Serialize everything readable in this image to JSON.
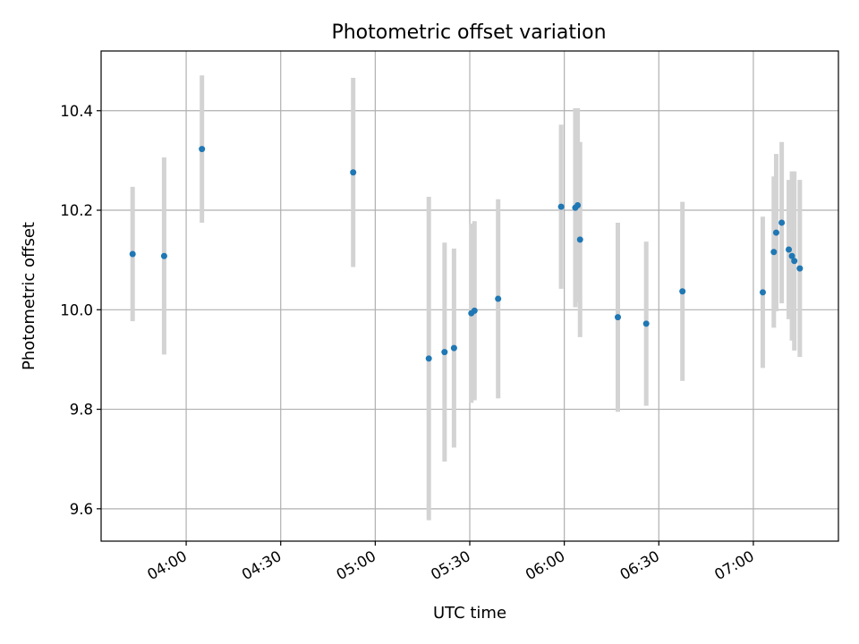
{
  "chart_data": {
    "type": "scatter",
    "title": "Photometric offset variation",
    "xlabel": "UTC time",
    "ylabel": "Photometric offset",
    "x_axis_type": "time",
    "xlim": [
      "03:33",
      "07:27"
    ],
    "ylim": [
      9.535,
      10.52
    ],
    "x_ticks": [
      "04:00",
      "04:30",
      "05:00",
      "05:30",
      "06:00",
      "06:30",
      "07:00"
    ],
    "y_ticks": [
      9.6,
      9.8,
      10.0,
      10.2,
      10.4
    ],
    "y_tick_labels": [
      "9.6",
      "9.8",
      "10.0",
      "10.2",
      "10.4"
    ],
    "x_tick_rotation_deg": 30,
    "grid": true,
    "marker_color": "#1f77b4",
    "errorbar_color": "#d3d3d3",
    "series": [
      {
        "points": [
          {
            "x": "03:43",
            "y": 10.112,
            "yerr": 0.135
          },
          {
            "x": "03:53",
            "y": 10.108,
            "yerr": 0.198
          },
          {
            "x": "04:05",
            "y": 10.323,
            "yerr": 0.148
          },
          {
            "x": "04:53",
            "y": 10.276,
            "yerr": 0.19
          },
          {
            "x": "05:17",
            "y": 9.902,
            "yerr": 0.325
          },
          {
            "x": "05:22",
            "y": 9.915,
            "yerr": 0.22
          },
          {
            "x": "05:25",
            "y": 9.923,
            "yerr": 0.2
          },
          {
            "x": "05:30:30",
            "y": 9.993,
            "yerr": 0.18
          },
          {
            "x": "05:31:30",
            "y": 9.998,
            "yerr": 0.18
          },
          {
            "x": "05:39",
            "y": 10.022,
            "yerr": 0.2
          },
          {
            "x": "05:59",
            "y": 10.207,
            "yerr": 0.165
          },
          {
            "x": "06:03:30",
            "y": 10.205,
            "yerr": 0.2
          },
          {
            "x": "06:04:15",
            "y": 10.21,
            "yerr": 0.195
          },
          {
            "x": "06:05",
            "y": 10.141,
            "yerr": 0.196
          },
          {
            "x": "06:17",
            "y": 9.985,
            "yerr": 0.19
          },
          {
            "x": "06:26",
            "y": 9.972,
            "yerr": 0.165
          },
          {
            "x": "06:37:30",
            "y": 10.037,
            "yerr": 0.18
          },
          {
            "x": "07:03",
            "y": 10.035,
            "yerr": 0.152
          },
          {
            "x": "07:06:30",
            "y": 10.116,
            "yerr": 0.152
          },
          {
            "x": "07:07:15",
            "y": 10.155,
            "yerr": 0.158
          },
          {
            "x": "07:09",
            "y": 10.175,
            "yerr": 0.162
          },
          {
            "x": "07:11:15",
            "y": 10.121,
            "yerr": 0.14
          },
          {
            "x": "07:12:15",
            "y": 10.108,
            "yerr": 0.17
          },
          {
            "x": "07:13",
            "y": 10.098,
            "yerr": 0.18
          },
          {
            "x": "07:14:45",
            "y": 10.083,
            "yerr": 0.178
          }
        ]
      }
    ]
  }
}
